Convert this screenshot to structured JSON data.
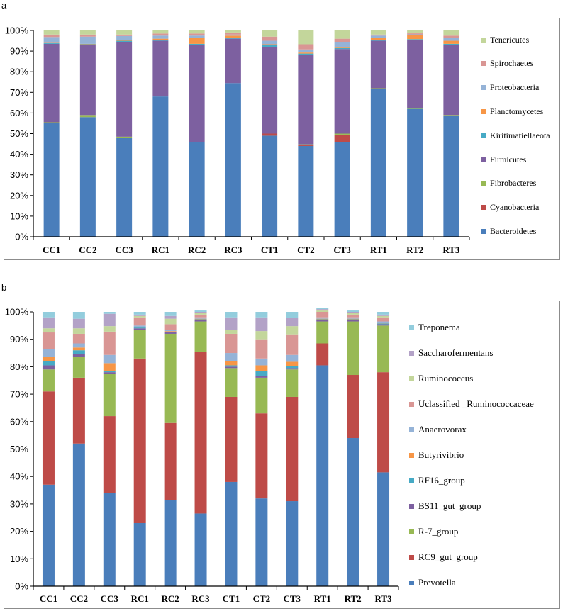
{
  "panels": [
    {
      "letter": "a"
    },
    {
      "letter": "b"
    }
  ],
  "chart_data": [
    {
      "type": "bar",
      "stacked": true,
      "percent": true,
      "title": "",
      "xlabel": "",
      "ylabel": "",
      "ylim": [
        0,
        100
      ],
      "yticks": [
        "0%",
        "10%",
        "20%",
        "30%",
        "40%",
        "50%",
        "60%",
        "70%",
        "80%",
        "90%",
        "100%"
      ],
      "categories": [
        "CC1",
        "CC2",
        "CC3",
        "RC1",
        "RC2",
        "RC3",
        "CT1",
        "CT2",
        "CT3",
        "RT1",
        "RT2",
        "RT3"
      ],
      "legend_position": "right",
      "series": [
        {
          "name": "Bacteroidetes",
          "color": "#4a7ebb",
          "values": [
            55.0,
            58.0,
            48.0,
            68.0,
            46.0,
            74.5,
            49.0,
            44.0,
            46.0,
            71.5,
            62.0,
            58.5
          ]
        },
        {
          "name": "Cyanobacteria",
          "color": "#be4b48",
          "values": [
            0.0,
            0.0,
            0.0,
            0.0,
            0.0,
            0.0,
            1.0,
            0.5,
            3.5,
            0.0,
            0.0,
            0.0
          ]
        },
        {
          "name": "Fibrobacteres",
          "color": "#98b954",
          "values": [
            0.5,
            1.0,
            0.5,
            0.0,
            0.0,
            0.0,
            0.0,
            0.3,
            0.5,
            0.5,
            0.5,
            0.5
          ]
        },
        {
          "name": "Firmicutes",
          "color": "#7d60a0",
          "values": [
            38.0,
            34.0,
            46.0,
            27.0,
            47.0,
            21.5,
            42.0,
            43.5,
            41.0,
            23.0,
            33.0,
            34.0
          ]
        },
        {
          "name": "Kiritimatiellaeota",
          "color": "#46aac5",
          "values": [
            0.5,
            0.3,
            0.5,
            0.5,
            0.5,
            0.5,
            1.0,
            0.5,
            0.5,
            0.3,
            0.3,
            0.5
          ]
        },
        {
          "name": "Planctomycetes",
          "color": "#f79646",
          "values": [
            0.3,
            0.2,
            0.3,
            0.5,
            3.0,
            1.0,
            0.3,
            0.5,
            0.5,
            1.0,
            1.8,
            1.5
          ]
        },
        {
          "name": "Proteobacteria",
          "color": "#95b3d7",
          "values": [
            2.5,
            3.5,
            2.0,
            1.5,
            1.0,
            0.5,
            1.7,
            1.5,
            2.5,
            1.2,
            0.5,
            1.5
          ]
        },
        {
          "name": "Spirochaetes",
          "color": "#d99694",
          "values": [
            1.2,
            1.0,
            0.7,
            1.0,
            1.0,
            1.0,
            2.0,
            2.5,
            1.5,
            0.5,
            0.5,
            1.0
          ]
        },
        {
          "name": "Tenericutes",
          "color": "#c3d69b",
          "values": [
            2.0,
            2.0,
            2.0,
            1.5,
            1.5,
            1.0,
            3.0,
            6.7,
            4.0,
            2.0,
            1.4,
            2.5
          ]
        }
      ]
    },
    {
      "type": "bar",
      "stacked": true,
      "percent": true,
      "title": "",
      "xlabel": "",
      "ylabel": "",
      "ylim": [
        0,
        100
      ],
      "yticks": [
        "0%",
        "10%",
        "20%",
        "30%",
        "40%",
        "50%",
        "60%",
        "70%",
        "80%",
        "90%",
        "100%"
      ],
      "categories": [
        "CC1",
        "CC2",
        "CC3",
        "RC1",
        "RC2",
        "RC3",
        "CT1",
        "CT2",
        "CT3",
        "RT1",
        "RT2",
        "RT3"
      ],
      "legend_position": "right",
      "series": [
        {
          "name": "Prevotella",
          "color": "#4a7ebb",
          "values": [
            37.0,
            52.0,
            34.0,
            23.0,
            31.5,
            26.5,
            38.0,
            32.0,
            31.0,
            80.5,
            54.0,
            41.5
          ]
        },
        {
          "name": "RC9_gut_group",
          "color": "#be4b48",
          "values": [
            34.0,
            24.0,
            28.0,
            60.0,
            28.0,
            59.0,
            31.0,
            31.0,
            38.0,
            8.0,
            23.0,
            36.5
          ]
        },
        {
          "name": "R-7_group",
          "color": "#98b954",
          "values": [
            8.0,
            7.5,
            15.5,
            10.5,
            32.5,
            11.0,
            10.5,
            13.0,
            10.0,
            8.0,
            19.5,
            17.0
          ]
        },
        {
          "name": "BS11_gut_group",
          "color": "#7d60a0",
          "values": [
            1.5,
            1.0,
            0.5,
            0.5,
            0.5,
            0.5,
            0.5,
            0.5,
            0.5,
            0.5,
            0.5,
            0.5
          ]
        },
        {
          "name": "RF16_group",
          "color": "#46aac5",
          "values": [
            1.5,
            1.5,
            0.3,
            0.3,
            0.3,
            0.3,
            0.5,
            2.0,
            0.8,
            0.3,
            0.3,
            0.3
          ]
        },
        {
          "name": "Butyrivibrio",
          "color": "#f79646",
          "values": [
            1.5,
            1.0,
            3.0,
            0.2,
            0.2,
            0.2,
            1.5,
            2.0,
            1.5,
            0.2,
            0.2,
            0.2
          ]
        },
        {
          "name": "Anaerovorax",
          "color": "#95b3d7",
          "values": [
            3.0,
            1.5,
            3.0,
            0.5,
            0.5,
            0.5,
            3.0,
            2.5,
            2.5,
            0.5,
            0.5,
            0.5
          ]
        },
        {
          "name": "Uclassified _Ruminococcaceae",
          "color": "#d99694",
          "values": [
            6.0,
            3.5,
            8.5,
            3.0,
            2.0,
            1.0,
            7.0,
            7.0,
            7.5,
            2.0,
            1.0,
            1.5
          ]
        },
        {
          "name": "Ruminococcus",
          "color": "#c3d69b",
          "values": [
            1.5,
            2.0,
            2.0,
            0.5,
            2.0,
            0.5,
            1.5,
            3.0,
            3.0,
            0.5,
            0.5,
            0.5
          ]
        },
        {
          "name": "Saccharofermentans",
          "color": "#b3a2c7",
          "values": [
            4.0,
            3.5,
            4.5,
            0.5,
            1.0,
            0.5,
            4.5,
            5.0,
            3.0,
            0.5,
            0.5,
            0.5
          ]
        },
        {
          "name": "Treponema",
          "color": "#93cddd",
          "values": [
            2.0,
            2.5,
            0.7,
            1.0,
            1.5,
            0.5,
            2.0,
            2.0,
            2.2,
            0.5,
            0.5,
            1.0
          ]
        }
      ]
    }
  ]
}
